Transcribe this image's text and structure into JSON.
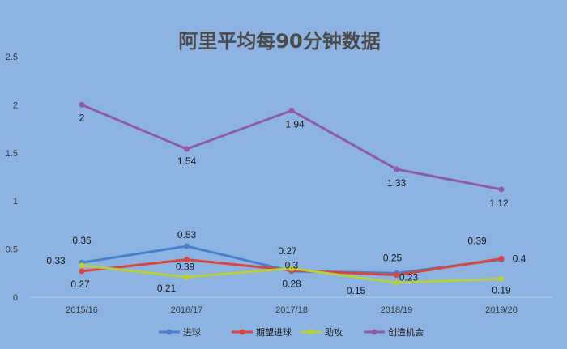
{
  "chart_data": {
    "type": "line",
    "title": "阿里平均每90分钟数据",
    "xlabel": "",
    "ylabel": "",
    "ylim": [
      0,
      2.5
    ],
    "yticks": [
      "0",
      "0.5",
      "1",
      "1.5",
      "2",
      "2.5"
    ],
    "categories": [
      "2015/16",
      "2016/17",
      "2017/18",
      "2018/19",
      "2019/20"
    ],
    "grid": false,
    "legend_position": "bottom",
    "series": [
      {
        "name": "进球",
        "color": "#4a7fc9",
        "values": [
          0.36,
          0.53,
          0.27,
          0.25,
          0.39
        ],
        "labels": [
          "0.36",
          "0.53",
          "0.27",
          "0.25",
          "0.39"
        ]
      },
      {
        "name": "期望进球",
        "color": "#d8463f",
        "values": [
          0.27,
          0.39,
          0.28,
          0.23,
          0.4
        ],
        "labels": [
          "0.27",
          "0.39",
          "0.28",
          "0.23",
          "0.4"
        ]
      },
      {
        "name": "助攻",
        "color": "#b7cf3d",
        "values": [
          0.33,
          0.21,
          0.3,
          0.15,
          0.19
        ],
        "labels": [
          "0.33",
          "0.21",
          "0.3",
          "0.15",
          "0.19"
        ]
      },
      {
        "name": "创造机会",
        "color": "#8e5ba8",
        "values": [
          2.0,
          1.54,
          1.94,
          1.33,
          1.12
        ],
        "labels": [
          "2",
          "1.54",
          "1.94",
          "1.33",
          "1.12"
        ]
      }
    ]
  }
}
